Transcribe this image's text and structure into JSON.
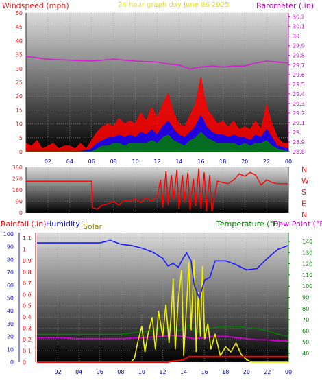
{
  "header": {
    "left_title": "Windspeed (mph)",
    "center_title": "24 hour graph day   June 06 2025",
    "right_title": "Barometer (.in)"
  },
  "colors": {
    "background": "#ffffff",
    "wind_axis": "#e0201e",
    "baro_axis": "#c000c0",
    "title_center": "#e8e000",
    "gust": "#ff0000",
    "avg_wind": "#0000ff",
    "min_wind": "#008000",
    "barometer": "#d020d0",
    "direction": "#ff0000",
    "humidity": "#1a1aff",
    "solar": "#f0f000",
    "temperature": "#008000",
    "dewpoint": "#cc00cc",
    "rainfall": "#ff0000",
    "rain_axis": "#ff0000",
    "hum_axis": "#1a1aff",
    "temp_axis": "#008000",
    "time_label": "#0000aa"
  },
  "time_ticks": [
    "02",
    "04",
    "06",
    "08",
    "10",
    "12",
    "14",
    "16",
    "18",
    "20",
    "22",
    "00"
  ],
  "chart_data": [
    {
      "type": "line",
      "name": "wind_barometer",
      "x_unit": "hour",
      "xlim": [
        0,
        24
      ],
      "left_axis": {
        "label": "Windspeed (mph)",
        "ticks": [
          "0",
          "5",
          "10",
          "15",
          "20",
          "25",
          "30",
          "35",
          "40",
          "45",
          "50"
        ],
        "ylim": [
          0,
          50
        ]
      },
      "right_axis": {
        "label": "Barometer (.in)",
        "ticks": [
          "28.8",
          "28.9",
          "29",
          "29.1",
          "29.2",
          "29.3",
          "29.4",
          "29.5",
          "29.6",
          "29.7",
          "29.8",
          "29.9",
          "30",
          "30.1",
          "30.2"
        ],
        "ylim": [
          28.8,
          30.24
        ]
      },
      "series": [
        {
          "name": "Barometer (.in)",
          "axis": "right",
          "x": [
            0,
            2,
            4,
            6,
            8,
            10,
            12,
            13,
            14,
            15,
            16,
            17,
            18,
            19,
            20,
            21,
            22,
            23,
            24
          ],
          "y": [
            29.79,
            29.76,
            29.75,
            29.74,
            29.76,
            29.74,
            29.73,
            29.71,
            29.7,
            29.66,
            29.68,
            29.69,
            29.68,
            29.69,
            29.69,
            29.72,
            29.74,
            29.73,
            29.72
          ]
        },
        {
          "x": [
            0,
            0.5,
            1,
            1.5,
            2,
            2.5,
            3,
            3.5,
            4,
            4.5,
            5,
            5.5,
            6,
            6.5,
            7,
            7.5,
            8,
            8.5,
            9,
            9.5,
            10,
            10.5,
            11,
            11.5,
            12,
            12.5,
            13,
            13.5,
            14,
            14.5,
            15,
            15.5,
            16,
            16.3,
            16.6,
            17,
            17.5,
            18,
            18.5,
            19,
            19.5,
            20,
            20.5,
            21,
            21.5,
            22,
            22.5,
            23,
            23.5,
            24
          ],
          "y": [
            3,
            2,
            4,
            1,
            2,
            3,
            1,
            2,
            2,
            1,
            3,
            1,
            4,
            7,
            9,
            10,
            9,
            12,
            10,
            11,
            10,
            14,
            11,
            16,
            12,
            17,
            21,
            14,
            10,
            9,
            13,
            17,
            27,
            20,
            15,
            13,
            10,
            11,
            9,
            11,
            8,
            9,
            8,
            11,
            8,
            17,
            10,
            5,
            3,
            3
          ]
        },
        {
          "x": [
            0,
            1,
            2,
            3,
            4,
            5,
            6,
            6.5,
            7,
            7.5,
            8,
            8.5,
            9,
            9.5,
            10,
            10.5,
            11,
            11.5,
            12,
            12.5,
            13,
            13.5,
            14,
            14.5,
            15,
            15.5,
            16,
            16.5,
            17,
            17.5,
            18,
            18.5,
            19,
            19.5,
            20,
            20.5,
            21,
            21.5,
            22,
            22.5,
            23,
            24
          ],
          "y": [
            0,
            0,
            0,
            0,
            0,
            0,
            1,
            3,
            4,
            5,
            5,
            6,
            5,
            6,
            5,
            7,
            6,
            8,
            6,
            9,
            11,
            8,
            6,
            5,
            7,
            9,
            13,
            9,
            7,
            6,
            6,
            5,
            6,
            5,
            5,
            4,
            6,
            5,
            8,
            5,
            2,
            1
          ]
        },
        {
          "x": [
            0,
            1,
            2,
            3,
            4,
            5,
            6,
            6.5,
            7,
            7.5,
            8,
            8.5,
            9,
            9.5,
            10,
            10.5,
            11,
            11.5,
            12,
            12.5,
            13,
            13.5,
            14,
            14.5,
            15,
            15.5,
            16,
            16.5,
            17,
            17.5,
            18,
            18.5,
            19,
            19.5,
            20,
            20.5,
            21,
            21.5,
            22,
            22.5,
            23,
            24
          ],
          "y": [
            0,
            0,
            0,
            0,
            0,
            0,
            0,
            1,
            2,
            2,
            3,
            3,
            2,
            3,
            3,
            3,
            3,
            4,
            3,
            5,
            6,
            4,
            3,
            2,
            4,
            5,
            7,
            5,
            4,
            3,
            3,
            3,
            3,
            2,
            3,
            2,
            3,
            3,
            4,
            2,
            1,
            0
          ]
        }
      ]
    },
    {
      "type": "line",
      "name": "wind_direction",
      "x_unit": "hour",
      "xlim": [
        0,
        24
      ],
      "left_axis": {
        "ticks": [
          "0",
          "90",
          "180",
          "270",
          "360"
        ],
        "ylim": [
          0,
          360
        ]
      },
      "right_axis": {
        "ticks": [
          "N",
          "E",
          "S",
          "W",
          "N"
        ],
        "ylim": [
          0,
          360
        ]
      },
      "series": [
        {
          "x": [
            0,
            3,
            5.8,
            6,
            6.1,
            6.5,
            7,
            7.5,
            8,
            8.5,
            9,
            9.5,
            10,
            10.5,
            11,
            11.5,
            12,
            12.3,
            12.5,
            12.8,
            13,
            13.3,
            13.5,
            13.8,
            14,
            14.3,
            14.5,
            14.8,
            15,
            15.3,
            15.5,
            15.8,
            16,
            16.3,
            16.5,
            16.8,
            17,
            17.5,
            18,
            18.5,
            19,
            19.5,
            20,
            20.5,
            21,
            21.5,
            22,
            22.5,
            23,
            23.5,
            24
          ],
          "y": [
            250,
            250,
            250,
            250,
            40,
            30,
            60,
            70,
            90,
            60,
            100,
            90,
            110,
            80,
            120,
            90,
            130,
            260,
            40,
            330,
            60,
            300,
            100,
            340,
            30,
            300,
            80,
            320,
            20,
            270,
            50,
            350,
            30,
            320,
            10,
            300,
            10,
            250,
            240,
            230,
            260,
            310,
            290,
            320,
            300,
            220,
            260,
            240,
            230,
            230,
            230
          ]
        }
      ]
    },
    {
      "type": "line",
      "name": "rain_humidity_solar_temperature",
      "x_unit": "hour",
      "xlim": [
        0,
        24
      ],
      "left_axes": [
        {
          "label": "Rainfall (.in)",
          "ticks": [
            "0",
            "0.1",
            "0.2",
            "0.3",
            "0.4",
            "0.5",
            "0.6",
            "0.7",
            "0.8",
            "0.9",
            "1",
            "1.1"
          ],
          "ylim": [
            0,
            1.1
          ]
        },
        {
          "label": "Humidity",
          "ticks": [
            "0",
            "10",
            "20",
            "30",
            "40",
            "50",
            "60",
            "70",
            "80",
            "90",
            "100"
          ],
          "ylim": [
            0,
            100
          ]
        }
      ],
      "right_axis": {
        "label": "Temperature (°F)",
        "ticks": [
          "40",
          "50",
          "60",
          "70",
          "80",
          "90",
          "100",
          "110",
          "120",
          "130",
          "140"
        ],
        "ylim": [
          32,
          148
        ]
      },
      "extra_labels": {
        "solar": "Solar",
        "dewpoint": "Dew Point (°F)"
      },
      "series": [
        {
          "name": "Humidity",
          "x": [
            0,
            2,
            4,
            6,
            6.5,
            7,
            8,
            9,
            10,
            11,
            12,
            12.5,
            13,
            13.5,
            14,
            14.3,
            14.7,
            15,
            15.5,
            16,
            16.5,
            17,
            18,
            19,
            20,
            21,
            22,
            23,
            24
          ],
          "y": [
            93,
            93,
            93,
            93,
            94,
            95,
            92,
            91,
            89,
            86,
            81,
            75,
            77,
            74,
            82,
            85,
            79,
            60,
            50,
            64,
            66,
            79,
            79,
            76,
            72,
            73,
            81,
            88,
            91
          ]
        },
        {
          "name": "Solar",
          "x": [
            0,
            3,
            6,
            7,
            8,
            9,
            9.3,
            9.6,
            10,
            10.3,
            10.6,
            11,
            11.3,
            11.6,
            12,
            12.3,
            12.6,
            12.8,
            13,
            13.2,
            13.5,
            13.8,
            14,
            14.2,
            14.5,
            14.7,
            15,
            15.2,
            15.4,
            15.6,
            15.8,
            16,
            16.3,
            16.6,
            17,
            17.5,
            18,
            18.5,
            19,
            19.5,
            20,
            20.5,
            21,
            22,
            23,
            24
          ],
          "y": [
            0,
            0,
            0,
            0,
            0,
            0,
            3,
            15,
            28,
            8,
            22,
            35,
            10,
            40,
            20,
            45,
            15,
            36,
            65,
            10,
            50,
            72,
            5,
            32,
            78,
            25,
            80,
            8,
            55,
            20,
            75,
            18,
            30,
            10,
            22,
            5,
            12,
            8,
            15,
            6,
            2,
            0,
            0,
            0,
            0,
            0
          ]
        },
        {
          "name": "Temperature (°F)",
          "x": [
            0,
            2,
            4,
            6,
            8,
            9,
            10,
            11,
            12,
            12.5,
            13,
            13.5,
            14,
            14.5,
            15,
            15.5,
            16,
            16.5,
            17,
            18,
            19,
            20,
            21,
            22,
            23,
            24
          ],
          "y": [
            57,
            57,
            57,
            57,
            57,
            58,
            59,
            60,
            62,
            63,
            64,
            60,
            62,
            65,
            60,
            59,
            61,
            62,
            63,
            64,
            64,
            63,
            62,
            60,
            57,
            55
          ]
        },
        {
          "name": "Dew Point (°F)",
          "x": [
            0,
            2,
            4,
            6,
            8,
            10,
            12,
            13,
            14,
            15,
            16,
            17,
            18,
            19,
            20,
            21,
            22,
            23,
            24
          ],
          "y": [
            54,
            54,
            53,
            53,
            53,
            54,
            55,
            56,
            55,
            53,
            54,
            55,
            55,
            54,
            53,
            52,
            52,
            51,
            51
          ]
        },
        {
          "name": "Rainfall (.in)",
          "x": [
            0,
            9,
            12.5,
            13,
            14,
            14.5,
            15,
            18,
            20,
            24
          ],
          "y": [
            0,
            0,
            0,
            0.01,
            0.02,
            0.05,
            0.05,
            0.05,
            0.05,
            0.05
          ]
        }
      ]
    }
  ],
  "panel2_side_labels": [
    "N",
    "W",
    "S",
    "E",
    "N"
  ]
}
